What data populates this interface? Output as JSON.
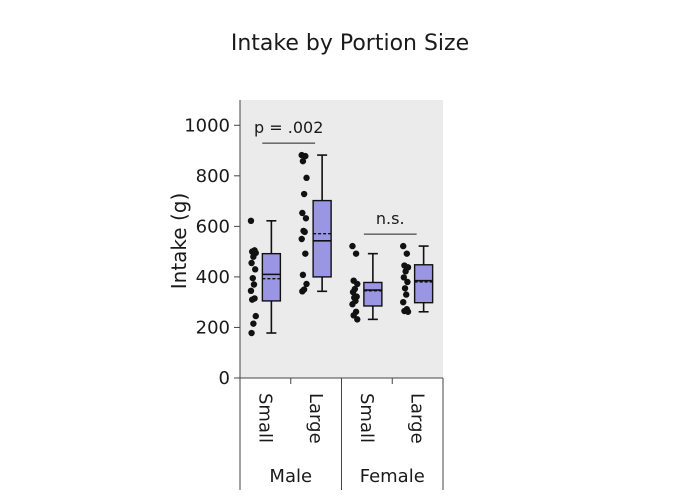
{
  "chart_data": {
    "type": "box",
    "title": "Intake by Portion Size",
    "ylabel": "Intake (g)",
    "ylim": [
      0,
      1100
    ],
    "yticks": [
      0,
      200,
      400,
      600,
      800,
      1000
    ],
    "ytick_labels": [
      "0",
      "200",
      "400",
      "600",
      "800",
      "1000"
    ],
    "box_color": "#9b96e3",
    "plot_bg": "#ebebeb",
    "groups": [
      {
        "label": "Male",
        "categories": [
          {
            "label": "Small",
            "whisker_low": 178,
            "q1": 305,
            "median": 410,
            "mean": 393,
            "q3": 492,
            "whisker_high": 622,
            "points": [
              622,
              505,
              500,
              495,
              480,
              455,
              430,
              395,
              370,
              345,
              315,
              310,
              245,
              215,
              178
            ]
          },
          {
            "label": "Large",
            "whisker_low": 343,
            "q1": 400,
            "median": 543,
            "mean": 571,
            "q3": 702,
            "whisker_high": 882,
            "points": [
              882,
              878,
              858,
              792,
              728,
              653,
              632,
              582,
              578,
              550,
              492,
              408,
              372,
              350,
              343
            ]
          }
        ]
      },
      {
        "label": "Female",
        "categories": [
          {
            "label": "Small",
            "whisker_low": 232,
            "q1": 285,
            "median": 348,
            "mean": 345,
            "q3": 378,
            "whisker_high": 492,
            "points": [
              522,
              492,
              385,
              372,
              352,
              340,
              322,
              318,
              305,
              292,
              262,
              248,
              232
            ]
          },
          {
            "label": "Large",
            "whisker_low": 262,
            "q1": 298,
            "median": 385,
            "mean": 380,
            "q3": 448,
            "whisker_high": 522,
            "points": [
              522,
              492,
              445,
              438,
              422,
              398,
              380,
              355,
              330,
              300,
              272,
              265,
              262
            ]
          }
        ]
      }
    ],
    "annotations": [
      {
        "text": "p = .002",
        "group": 0
      },
      {
        "text": "n.s.",
        "group": 1
      }
    ]
  }
}
